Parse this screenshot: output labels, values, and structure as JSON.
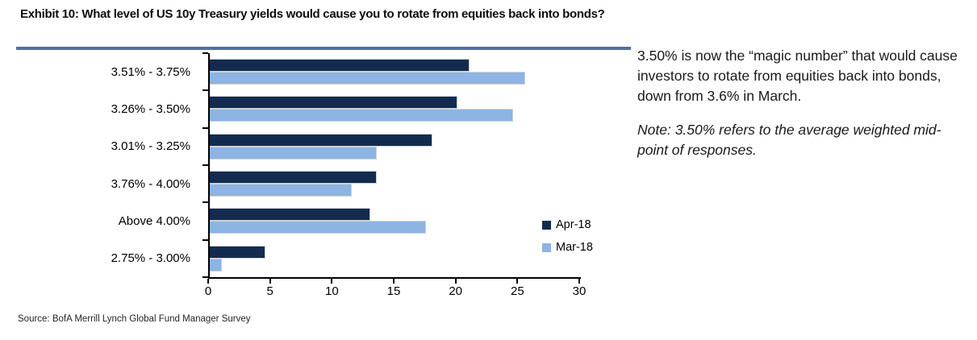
{
  "exhibit": {
    "title": "Exhibit 10: What level of US 10y Treasury yields would cause you to rotate from equities back into bonds?"
  },
  "chart_data": {
    "type": "bar",
    "orientation": "horizontal",
    "title": "",
    "xlabel": "",
    "ylabel": "",
    "categories": [
      "3.51% - 3.75%",
      "3.26% - 3.50%",
      "3.01% - 3.25%",
      "3.76% - 4.00%",
      "Above 4.00%",
      "2.75% - 3.00%"
    ],
    "series": [
      {
        "name": "Apr-18",
        "color": "#132b4e",
        "values": [
          21,
          20,
          18,
          13.5,
          13,
          4.5
        ]
      },
      {
        "name": "Mar-18",
        "color": "#8db4e2",
        "values": [
          25.5,
          24.5,
          13.5,
          11.5,
          17.5,
          1
        ]
      }
    ],
    "xlim": [
      0,
      30
    ],
    "x_ticks": [
      0,
      5,
      10,
      15,
      20,
      25,
      30
    ],
    "grid": false,
    "legend_position": "inside-right"
  },
  "annotation": {
    "paragraph": "3.50% is now the “magic number” that would cause investors to rotate from equities back into bonds, down from 3.6% in March.",
    "note": "Note: 3.50% refers to the average weighted mid-point of responses."
  },
  "source": "Source: BofA Merrill Lynch Global Fund Manager Survey",
  "colors": {
    "series_apr_18": "#132b4e",
    "series_mar_18": "#8db4e2",
    "title_rule": "#4c72a4",
    "axis": "#000000"
  }
}
